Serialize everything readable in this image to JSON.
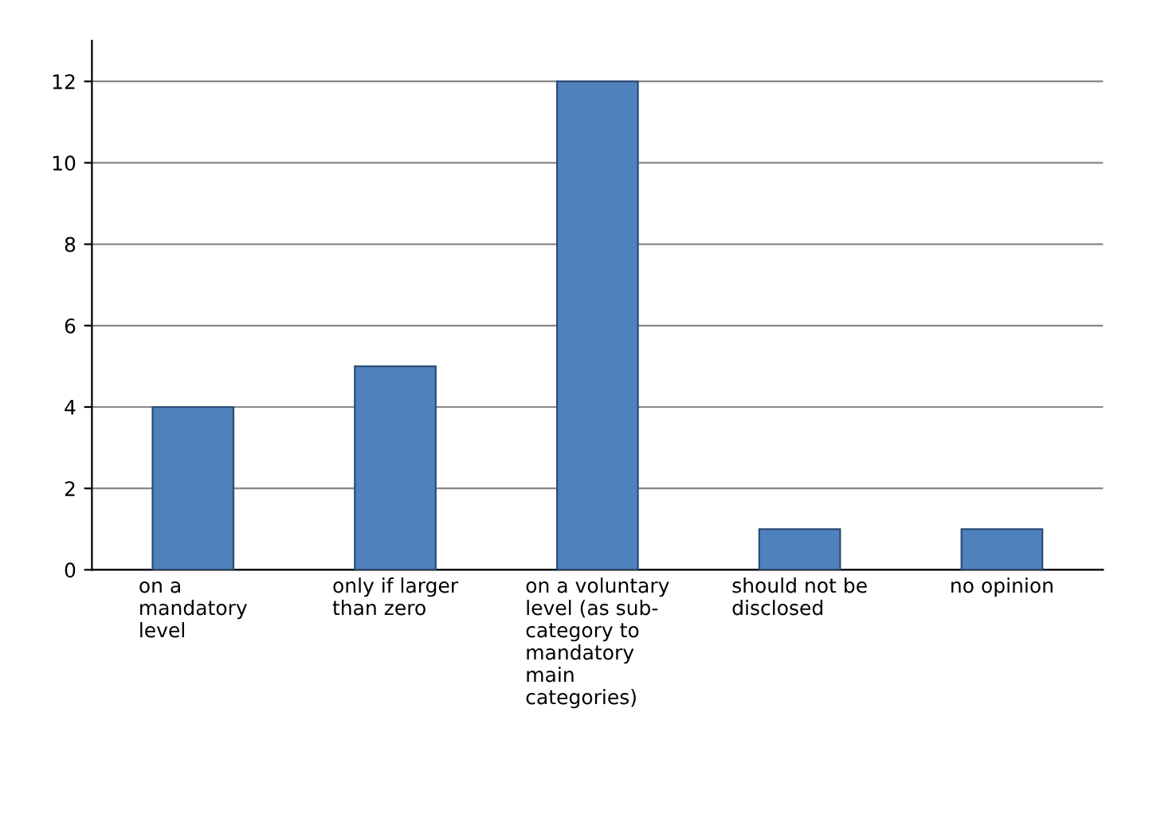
{
  "chart_data": {
    "type": "bar",
    "categories": [
      "on a\nmandatory\nlevel",
      "only if larger\nthan zero",
      "on a voluntary\nlevel (as sub-\ncategory to\nmandatory\nmain\ncategories)",
      "should not be\ndisclosed",
      "no opinion"
    ],
    "values": [
      4,
      5,
      12,
      1,
      1
    ],
    "color": "#4f81bd",
    "ylim": [
      0,
      13
    ],
    "yticks": [
      0,
      2,
      4,
      6,
      8,
      10,
      12
    ],
    "grid": "y"
  }
}
